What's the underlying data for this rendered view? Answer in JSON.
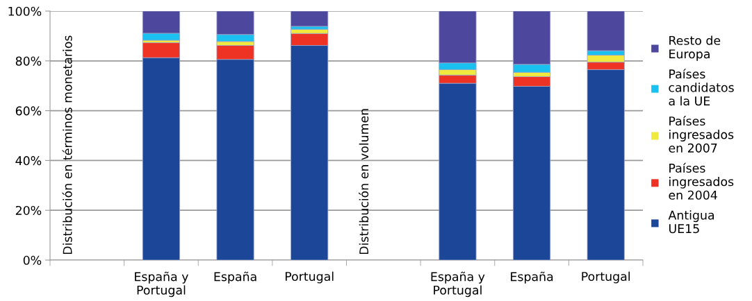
{
  "chart_data": {
    "type": "bar",
    "stacked": true,
    "categories": [
      null,
      "España y\nPortugal",
      "España",
      "Portugal",
      null,
      "España y\nPortugal",
      "España",
      "Portugal"
    ],
    "series": [
      {
        "name": "Antigua\nUE15",
        "color": "#1c4698",
        "values": [
          null,
          81.3,
          80.6,
          86.2,
          null,
          71.0,
          69.8,
          76.5
        ]
      },
      {
        "name": "Países\ningresados\nen 2004",
        "color": "#ee3224",
        "values": [
          null,
          6.0,
          5.6,
          4.8,
          null,
          3.3,
          3.9,
          3.0
        ]
      },
      {
        "name": "Países\ningresados\nen 2007",
        "color": "#f0e93e",
        "values": [
          null,
          1.0,
          1.6,
          1.7,
          null,
          2.2,
          1.7,
          2.8
        ]
      },
      {
        "name": "Países\ncandidatos\na la UE",
        "color": "#1ac0ef",
        "values": [
          null,
          2.8,
          2.8,
          1.2,
          null,
          2.7,
          3.2,
          1.8
        ]
      },
      {
        "name": "Resto de\nEuropa",
        "color": "#4d479d",
        "values": [
          null,
          8.9,
          9.4,
          6.1,
          null,
          20.8,
          21.4,
          15.9
        ]
      }
    ],
    "ylim": [
      0,
      100
    ],
    "yticks": [
      {
        "value": 0,
        "label": "0%"
      },
      {
        "value": 20,
        "label": "20%"
      },
      {
        "value": 40,
        "label": "40%"
      },
      {
        "value": 60,
        "label": "60%"
      },
      {
        "value": 80,
        "label": "80%"
      },
      {
        "value": 100,
        "label": "100%"
      }
    ],
    "grid": "y",
    "legend": "right",
    "annotations": [
      "Distribución en términos monetarios",
      "Distribución en volumen"
    ]
  }
}
